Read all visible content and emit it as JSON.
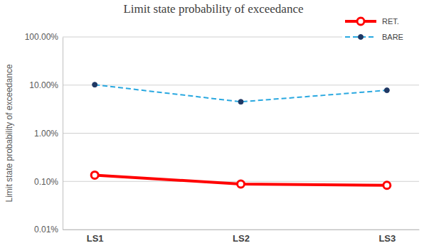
{
  "chart_data": {
    "type": "line",
    "title": "Limit state probability of exceedance",
    "y_label": "Limit state probability of exceedance",
    "categories": [
      "LS1",
      "LS2",
      "LS3"
    ],
    "series": [
      {
        "name": "RET.",
        "color": "#ff0000",
        "marker": "circle",
        "line_style": "solid",
        "values": [
          0.135,
          0.088,
          0.083
        ]
      },
      {
        "name": "BARE",
        "color": "#29a8e0",
        "marker": "dot",
        "line_style": "dashed",
        "values": [
          10.2,
          4.5,
          7.8
        ]
      }
    ],
    "log": "y",
    "ylim": [
      0.01,
      100
    ],
    "yticks": [
      {
        "value": 0.01,
        "label": "0.01%"
      },
      {
        "value": 0.1,
        "label": "0.10%"
      },
      {
        "value": 1,
        "label": "1.00%"
      },
      {
        "value": 10,
        "label": "10.00%"
      },
      {
        "value": 100,
        "label": "100.00%"
      }
    ],
    "grid": true,
    "legend": "top-right"
  }
}
